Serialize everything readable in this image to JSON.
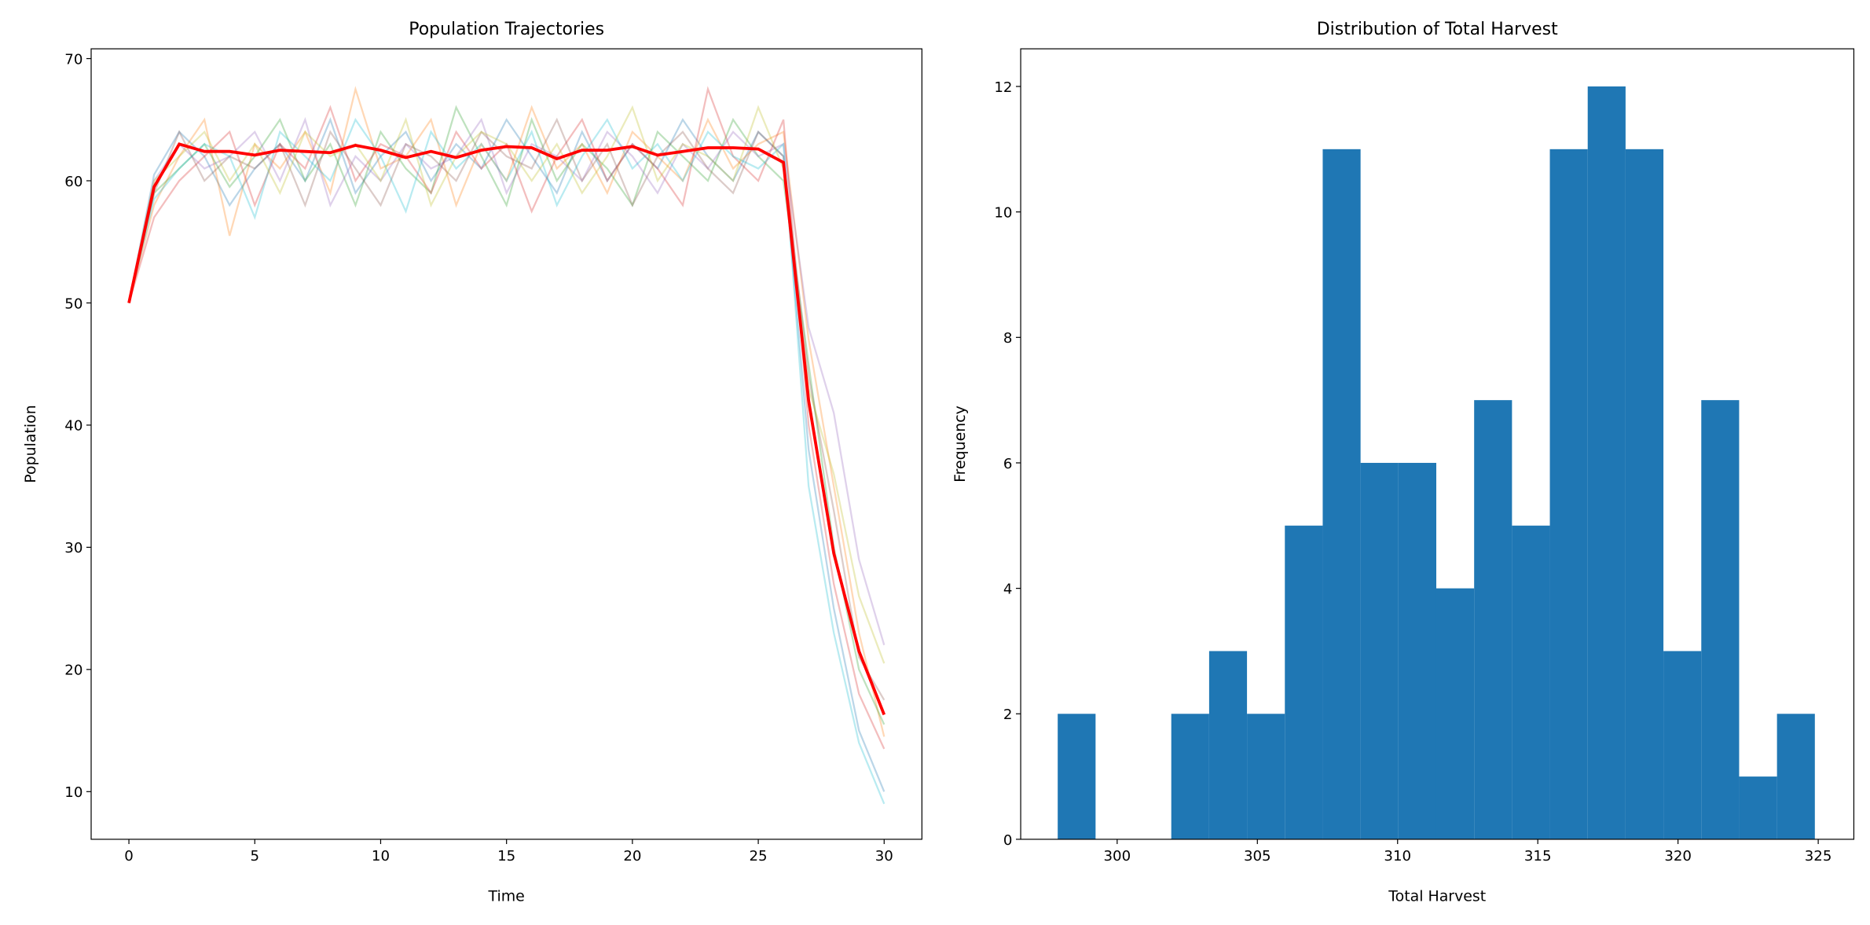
{
  "chart_data": [
    {
      "type": "line",
      "title": "Population Trajectories",
      "xlabel": "Time",
      "ylabel": "Population",
      "x": [
        0,
        1,
        2,
        3,
        4,
        5,
        6,
        7,
        8,
        9,
        10,
        11,
        12,
        13,
        14,
        15,
        16,
        17,
        18,
        19,
        20,
        21,
        22,
        23,
        24,
        25,
        26,
        27,
        28,
        29,
        30
      ],
      "xlim": [
        -1.5,
        31.5
      ],
      "ylim": [
        6.1,
        70.8
      ],
      "xticks": [
        0,
        5,
        10,
        15,
        20,
        25,
        30
      ],
      "yticks": [
        10,
        20,
        30,
        40,
        50,
        60,
        70
      ],
      "line_alpha": 0.3,
      "series": [
        {
          "color": "#1f77b4",
          "values": [
            50,
            60.5,
            64,
            62,
            58,
            61,
            63,
            60,
            65,
            59,
            62,
            64,
            60,
            63,
            61,
            65,
            62,
            59,
            64,
            60,
            63,
            61,
            65,
            62,
            60,
            64,
            62,
            38,
            25,
            15,
            10
          ]
        },
        {
          "color": "#ff7f0e",
          "values": [
            50,
            58,
            62,
            65,
            55.5,
            63,
            61,
            64,
            59,
            67.5,
            61,
            62,
            65,
            58,
            63,
            60,
            66,
            61,
            63,
            59,
            64,
            62,
            60,
            65,
            61,
            63,
            64,
            47,
            35,
            23,
            14.5
          ]
        },
        {
          "color": "#2ca02c",
          "values": [
            50,
            59,
            61,
            63,
            59.5,
            62,
            65,
            60,
            63,
            58,
            64,
            61,
            59,
            66,
            62,
            58,
            65,
            60,
            63,
            61,
            58,
            64,
            62,
            60,
            65,
            62,
            60,
            45,
            30,
            20,
            15.5
          ]
        },
        {
          "color": "#d62728",
          "values": [
            50,
            57,
            60,
            62,
            64,
            58,
            63,
            61,
            66,
            60,
            63,
            62,
            59,
            64,
            61,
            63,
            57.5,
            62,
            65,
            60,
            63,
            61,
            58,
            67.5,
            62,
            60,
            65,
            40,
            27,
            18,
            13.5
          ]
        },
        {
          "color": "#9467bd",
          "values": [
            50,
            60,
            63,
            61,
            62,
            64,
            60,
            65,
            58,
            62,
            60,
            63,
            61,
            62,
            65,
            59,
            63,
            62,
            60,
            64,
            62,
            59,
            63,
            61,
            64,
            62,
            63,
            48,
            41,
            29,
            22
          ]
        },
        {
          "color": "#8c564b",
          "values": [
            50,
            59,
            64,
            60,
            62,
            61,
            63,
            58,
            64,
            61,
            58,
            63,
            62,
            60,
            64,
            62,
            61,
            65,
            60,
            63,
            58,
            62,
            64,
            61,
            59,
            64,
            62,
            44,
            33,
            21,
            17.5
          ]
        },
        {
          "color": "#17becf",
          "values": [
            50,
            58.5,
            61,
            63,
            62,
            57,
            64,
            62,
            60,
            65,
            62,
            57.5,
            64,
            61,
            63,
            60,
            64,
            58,
            62,
            65,
            61,
            63,
            60,
            64,
            62,
            61,
            63,
            35,
            23,
            14,
            9
          ]
        },
        {
          "color": "#bcbd22",
          "values": [
            50,
            60,
            62,
            64,
            60,
            63,
            59,
            64,
            62,
            63,
            60,
            65,
            58,
            62,
            64,
            63,
            60,
            63,
            59,
            62,
            66,
            60,
            63,
            62,
            60,
            66,
            61,
            43,
            36,
            26,
            20.5
          ]
        }
      ],
      "mean": {
        "color": "red",
        "values": [
          50,
          59.5,
          63,
          62.4,
          62.4,
          62.1,
          62.5,
          62.4,
          62.3,
          62.9,
          62.5,
          61.9,
          62.4,
          61.9,
          62.5,
          62.8,
          62.7,
          61.8,
          62.5,
          62.5,
          62.8,
          62.1,
          62.4,
          62.7,
          62.7,
          62.6,
          61.5,
          42,
          29.5,
          21.5,
          16.3
        ]
      }
    },
    {
      "type": "histogram",
      "title": "Distribution of Total Harvest",
      "xlabel": "Total Harvest",
      "ylabel": "Frequency",
      "bins": [
        297.88,
        299.23,
        300.58,
        301.93,
        303.28,
        304.63,
        305.98,
        307.33,
        308.68,
        310.03,
        311.38,
        312.73,
        314.08,
        315.43,
        316.78,
        318.13,
        319.48,
        320.83,
        322.18,
        323.53,
        324.88
      ],
      "counts": [
        2,
        0,
        0,
        2,
        3,
        2,
        5,
        11,
        6,
        6,
        4,
        7,
        5,
        11,
        12,
        11,
        3,
        7,
        1,
        2
      ],
      "color": "#1f77b4",
      "xlim": [
        296.56,
        326.27
      ],
      "ylim": [
        0,
        12.6
      ],
      "xticks": [
        300,
        305,
        310,
        315,
        320,
        325
      ],
      "yticks": [
        0,
        2,
        4,
        6,
        8,
        10,
        12
      ]
    }
  ]
}
